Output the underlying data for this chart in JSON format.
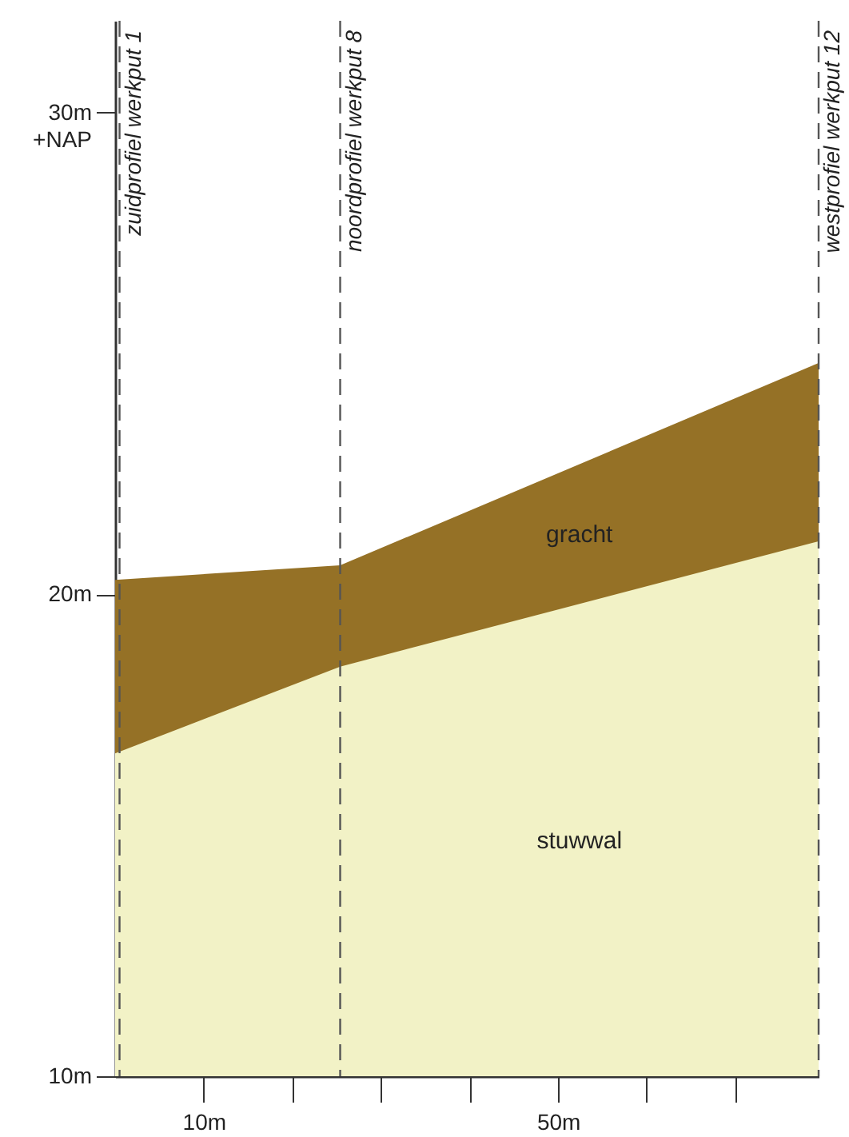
{
  "chart_data": {
    "type": "area",
    "x": [
      0,
      25.4,
      79.4
    ],
    "series": [
      {
        "name": "gracht",
        "color": "#957126",
        "values": [
          20.3,
          20.6,
          24.8
        ]
      },
      {
        "name": "stuwwal",
        "color": "#f2f2c6",
        "values": [
          16.7,
          18.5,
          21.1
        ]
      }
    ],
    "xlim": [
      0,
      79.4
    ],
    "xticks": [
      {
        "value": 10,
        "label": "10m"
      },
      {
        "value": 20,
        "label": null
      },
      {
        "value": 30,
        "label": null
      },
      {
        "value": 40,
        "label": null
      },
      {
        "value": 50,
        "label": "50m"
      },
      {
        "value": 60,
        "label": null
      },
      {
        "value": 70,
        "label": null
      }
    ],
    "ylim": [
      10,
      31.9
    ],
    "yticks": [
      {
        "value": 10,
        "label": "10m"
      },
      {
        "value": 20,
        "label": "20m"
      },
      {
        "value": 30,
        "label": "30m +NAP"
      }
    ],
    "grid": false,
    "ref_lines": [
      {
        "axis": "x",
        "value": 0.5,
        "label": "zuidprofiel werkput 1",
        "line_style": "dashed",
        "color": "#555555"
      },
      {
        "axis": "x",
        "value": 25.4,
        "label": "noordprofiel werkput 8",
        "line_style": "dashed",
        "color": "#555555"
      },
      {
        "axis": "x",
        "value": 79.4,
        "label": "westprofiel werkput 12",
        "line_style": "dashed",
        "color": "#555555"
      }
    ]
  }
}
